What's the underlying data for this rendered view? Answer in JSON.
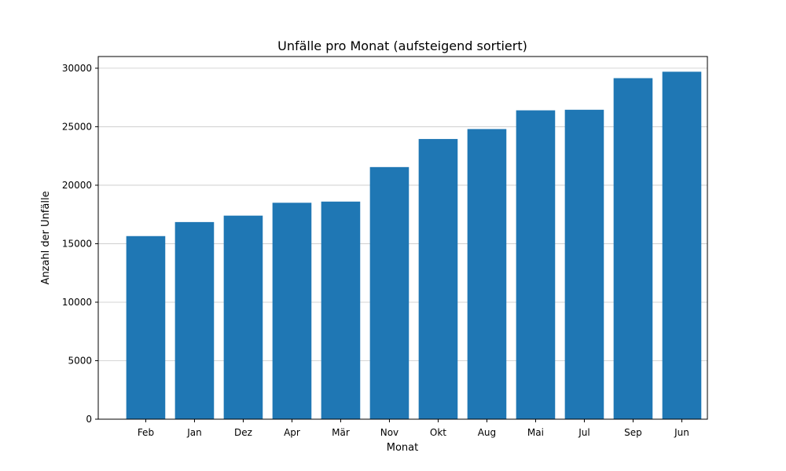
{
  "chart_data": {
    "type": "bar",
    "title": "Unfälle pro Monat (aufsteigend sortiert)",
    "xlabel": "Monat",
    "ylabel": "Anzahl der Unfälle",
    "categories": [
      "Feb",
      "Jan",
      "Dez",
      "Apr",
      "Mär",
      "Nov",
      "Okt",
      "Aug",
      "Mai",
      "Jul",
      "Sep",
      "Jun"
    ],
    "values": [
      15650,
      16850,
      17400,
      18500,
      18600,
      21550,
      23950,
      24800,
      26400,
      26450,
      29150,
      29700
    ],
    "ylim": [
      0,
      31000
    ],
    "yticks": [
      0,
      5000,
      10000,
      15000,
      20000,
      25000,
      30000
    ],
    "ytick_labels": [
      "0",
      "5000",
      "10000",
      "15000",
      "20000",
      "25000",
      "30000"
    ],
    "grid": "y",
    "bar_color": "#1f77b4",
    "grid_color": "#c8c8c8"
  }
}
